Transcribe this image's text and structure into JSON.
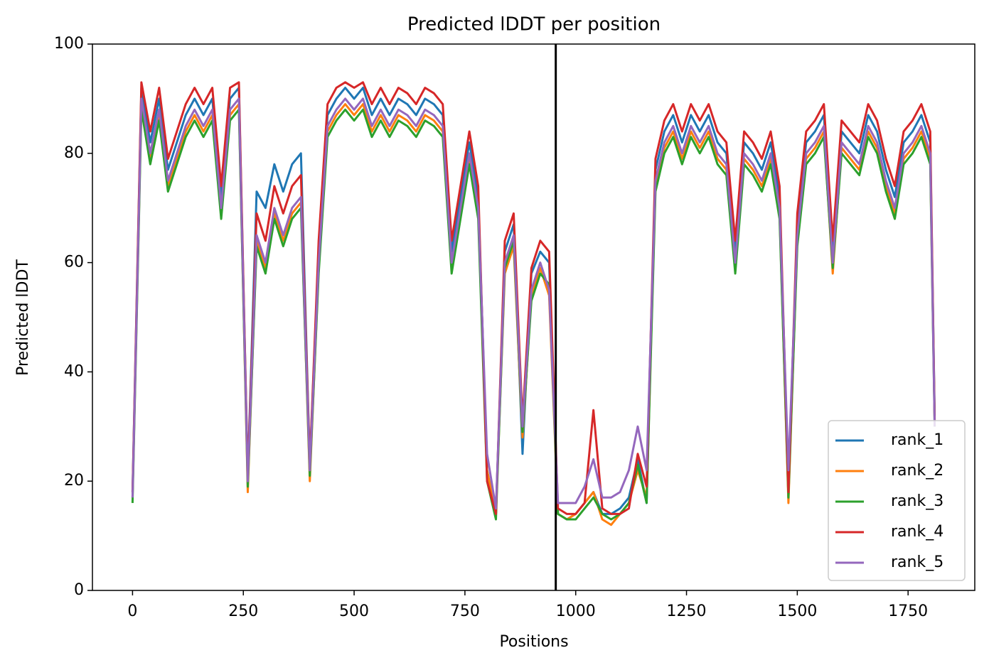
{
  "chart_data": {
    "type": "line",
    "title": "Predicted lDDT per position",
    "xlabel": "Positions",
    "ylabel": "Predicted lDDT",
    "x": [
      0,
      20,
      40,
      60,
      80,
      100,
      120,
      140,
      160,
      180,
      200,
      220,
      240,
      260,
      280,
      300,
      320,
      340,
      360,
      380,
      400,
      420,
      440,
      460,
      480,
      500,
      520,
      540,
      560,
      580,
      600,
      620,
      640,
      660,
      680,
      700,
      720,
      740,
      760,
      780,
      800,
      820,
      840,
      860,
      880,
      900,
      920,
      940,
      960,
      980,
      1000,
      1020,
      1040,
      1060,
      1080,
      1100,
      1120,
      1140,
      1160,
      1180,
      1200,
      1220,
      1240,
      1260,
      1280,
      1300,
      1320,
      1340,
      1360,
      1380,
      1400,
      1420,
      1440,
      1460,
      1480,
      1500,
      1520,
      1540,
      1560,
      1580,
      1600,
      1620,
      1640,
      1660,
      1680,
      1700,
      1720,
      1740,
      1760,
      1780,
      1800,
      1810
    ],
    "series": [
      {
        "name": "rank_1",
        "color": "#1f77b4",
        "values": [
          18,
          92,
          82,
          90,
          77,
          82,
          87,
          90,
          87,
          90,
          72,
          90,
          92,
          21,
          73,
          70,
          78,
          73,
          78,
          80,
          23,
          62,
          87,
          90,
          92,
          90,
          92,
          87,
          90,
          87,
          90,
          89,
          87,
          90,
          89,
          87,
          62,
          72,
          82,
          72,
          22,
          14,
          62,
          67,
          25,
          58,
          62,
          60,
          14,
          13,
          14,
          16,
          18,
          14,
          14,
          15,
          17,
          24,
          16,
          77,
          84,
          87,
          82,
          87,
          84,
          87,
          82,
          80,
          62,
          82,
          80,
          77,
          82,
          72,
          17,
          67,
          82,
          84,
          87,
          62,
          84,
          82,
          80,
          87,
          84,
          77,
          72,
          82,
          84,
          87,
          82,
          32
        ]
      },
      {
        "name": "rank_2",
        "color": "#ff7f0e",
        "values": [
          17,
          89,
          79,
          87,
          74,
          79,
          84,
          87,
          84,
          87,
          69,
          87,
          89,
          18,
          64,
          59,
          69,
          64,
          69,
          71,
          20,
          59,
          84,
          87,
          89,
          87,
          89,
          84,
          87,
          84,
          87,
          86,
          84,
          87,
          86,
          84,
          59,
          69,
          79,
          69,
          22,
          14,
          58,
          63,
          28,
          54,
          59,
          54,
          14,
          13,
          14,
          16,
          18,
          13,
          12,
          14,
          16,
          22,
          17,
          74,
          81,
          84,
          79,
          84,
          81,
          84,
          79,
          77,
          59,
          79,
          77,
          74,
          79,
          69,
          16,
          64,
          79,
          81,
          84,
          58,
          81,
          79,
          77,
          84,
          81,
          74,
          69,
          79,
          81,
          84,
          79,
          31
        ]
      },
      {
        "name": "rank_3",
        "color": "#2ca02c",
        "values": [
          16,
          88,
          78,
          86,
          73,
          78,
          83,
          86,
          83,
          86,
          68,
          86,
          88,
          19,
          63,
          58,
          68,
          63,
          68,
          70,
          21,
          58,
          83,
          86,
          88,
          86,
          88,
          83,
          86,
          83,
          86,
          85,
          83,
          86,
          85,
          83,
          58,
          68,
          78,
          68,
          20,
          13,
          59,
          64,
          29,
          53,
          58,
          56,
          14,
          13,
          13,
          15,
          17,
          14,
          13,
          14,
          16,
          23,
          16,
          73,
          80,
          83,
          78,
          83,
          80,
          83,
          78,
          76,
          58,
          78,
          76,
          73,
          78,
          68,
          17,
          63,
          78,
          80,
          83,
          59,
          80,
          78,
          76,
          83,
          80,
          73,
          68,
          78,
          80,
          83,
          78,
          30
        ]
      },
      {
        "name": "rank_4",
        "color": "#d62728",
        "values": [
          18,
          93,
          84,
          92,
          79,
          84,
          89,
          92,
          89,
          92,
          74,
          92,
          93,
          21,
          69,
          64,
          74,
          69,
          74,
          76,
          23,
          64,
          89,
          92,
          93,
          92,
          93,
          89,
          92,
          89,
          92,
          91,
          89,
          92,
          91,
          89,
          64,
          74,
          84,
          74,
          20,
          14,
          64,
          69,
          31,
          59,
          64,
          62,
          15,
          14,
          14,
          16,
          33,
          15,
          14,
          14,
          15,
          25,
          19,
          79,
          86,
          89,
          84,
          89,
          86,
          89,
          84,
          82,
          64,
          84,
          82,
          79,
          84,
          74,
          18,
          69,
          84,
          86,
          89,
          64,
          86,
          84,
          82,
          89,
          86,
          79,
          74,
          84,
          86,
          89,
          84,
          31
        ]
      },
      {
        "name": "rank_5",
        "color": "#9467bd",
        "values": [
          17,
          90,
          80,
          88,
          75,
          80,
          85,
          88,
          85,
          88,
          70,
          88,
          90,
          20,
          65,
          60,
          70,
          65,
          70,
          72,
          22,
          60,
          85,
          88,
          90,
          88,
          90,
          85,
          88,
          85,
          88,
          87,
          85,
          88,
          87,
          85,
          60,
          70,
          80,
          70,
          25,
          15,
          60,
          65,
          30,
          55,
          60,
          55,
          16,
          16,
          16,
          19,
          24,
          17,
          17,
          18,
          22,
          30,
          22,
          75,
          82,
          85,
          80,
          85,
          82,
          85,
          80,
          78,
          60,
          80,
          78,
          75,
          80,
          70,
          22,
          65,
          80,
          82,
          85,
          60,
          82,
          80,
          78,
          85,
          82,
          75,
          70,
          80,
          82,
          85,
          80,
          30
        ]
      }
    ],
    "vline": 955,
    "vline_color": "#000000",
    "xlim": [
      -90.5,
      1900.5
    ],
    "xticks": [
      0,
      250,
      500,
      750,
      1000,
      1250,
      1500,
      1750
    ],
    "ylim": [
      0,
      100
    ],
    "yticks": [
      0,
      20,
      40,
      60,
      80,
      100
    ],
    "grid": false,
    "legend": "lower right"
  }
}
